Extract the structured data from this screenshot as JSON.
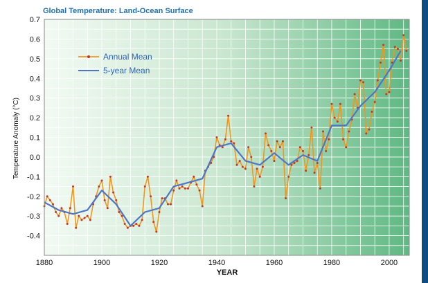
{
  "chart_data": {
    "type": "line",
    "title": "Global Temperature:  Land-Ocean Surface",
    "xlabel": "YEAR",
    "ylabel": "Temperature Anomaly (°C)",
    "xlim": [
      1880,
      2007
    ],
    "ylim": [
      -0.5,
      0.7
    ],
    "x_ticks": [
      "1880",
      "1900",
      "1920",
      "1940",
      "1960",
      "1980",
      "2000"
    ],
    "y_ticks": [
      "0.7",
      "0.6",
      "0.5",
      "0.4",
      "0.3",
      "0.2",
      "0.1",
      "0.0",
      "-0.1",
      "-0.2",
      "-0.3",
      "-0.4"
    ],
    "grid": true,
    "legend_position": "top-left",
    "series": [
      {
        "name": "Annual Mean",
        "color": "#f0961e",
        "marker_color": "#c0392b",
        "x": [
          1880,
          1881,
          1882,
          1883,
          1884,
          1885,
          1886,
          1887,
          1888,
          1889,
          1890,
          1891,
          1892,
          1893,
          1894,
          1895,
          1896,
          1897,
          1898,
          1899,
          1900,
          1901,
          1902,
          1903,
          1904,
          1905,
          1906,
          1907,
          1908,
          1909,
          1910,
          1911,
          1912,
          1913,
          1914,
          1915,
          1916,
          1917,
          1918,
          1919,
          1920,
          1921,
          1922,
          1923,
          1924,
          1925,
          1926,
          1927,
          1928,
          1929,
          1930,
          1931,
          1932,
          1933,
          1934,
          1935,
          1936,
          1937,
          1938,
          1939,
          1940,
          1941,
          1942,
          1943,
          1944,
          1945,
          1946,
          1947,
          1948,
          1949,
          1950,
          1951,
          1952,
          1953,
          1954,
          1955,
          1956,
          1957,
          1958,
          1959,
          1960,
          1961,
          1962,
          1963,
          1964,
          1965,
          1966,
          1967,
          1968,
          1969,
          1970,
          1971,
          1972,
          1973,
          1974,
          1975,
          1976,
          1977,
          1978,
          1979,
          1980,
          1981,
          1982,
          1983,
          1984,
          1985,
          1986,
          1987,
          1988,
          1989,
          1990,
          1991,
          1992,
          1993,
          1994,
          1995,
          1996,
          1997,
          1998,
          1999,
          2000,
          2001,
          2002,
          2003,
          2004,
          2005,
          2006
        ],
        "values": [
          -0.25,
          -0.2,
          -0.22,
          -0.24,
          -0.28,
          -0.3,
          -0.26,
          -0.28,
          -0.34,
          -0.26,
          -0.15,
          -0.36,
          -0.3,
          -0.32,
          -0.31,
          -0.3,
          -0.32,
          -0.24,
          -0.2,
          -0.15,
          -0.12,
          -0.22,
          -0.26,
          -0.1,
          -0.18,
          -0.22,
          -0.28,
          -0.3,
          -0.34,
          -0.36,
          -0.35,
          -0.35,
          -0.34,
          -0.35,
          -0.32,
          -0.15,
          -0.1,
          -0.2,
          -0.33,
          -0.38,
          -0.28,
          -0.21,
          -0.21,
          -0.24,
          -0.24,
          -0.17,
          -0.12,
          -0.16,
          -0.15,
          -0.16,
          -0.16,
          -0.13,
          -0.1,
          -0.14,
          -0.17,
          -0.25,
          -0.07,
          -0.05,
          -0.03,
          0.0,
          0.1,
          0.06,
          0.05,
          0.09,
          0.21,
          0.08,
          0.07,
          -0.04,
          -0.02,
          -0.05,
          -0.06,
          0.05,
          0.0,
          -0.15,
          -0.06,
          -0.1,
          -0.05,
          0.12,
          0.06,
          0.03,
          -0.02,
          0.08,
          0.05,
          0.08,
          -0.21,
          -0.1,
          -0.04,
          -0.03,
          -0.02,
          0.05,
          0.03,
          -0.07,
          0.01,
          0.15,
          -0.08,
          -0.03,
          -0.16,
          0.13,
          0.03,
          0.09,
          0.27,
          0.2,
          0.18,
          0.27,
          0.09,
          0.05,
          0.13,
          0.19,
          0.32,
          0.25,
          0.39,
          0.38,
          0.12,
          0.14,
          0.23,
          0.28,
          0.39,
          0.48,
          0.57,
          0.32,
          0.33,
          0.48,
          0.56,
          0.55,
          0.49,
          0.62,
          0.54
        ]
      },
      {
        "name": "5-year Mean",
        "color": "#4f76c4",
        "x": [
          1880,
          1885,
          1890,
          1895,
          1900,
          1905,
          1910,
          1915,
          1920,
          1925,
          1930,
          1935,
          1940,
          1945,
          1950,
          1955,
          1960,
          1965,
          1970,
          1975,
          1980,
          1985,
          1990,
          1995,
          2000,
          2004
        ],
        "values": [
          -0.23,
          -0.27,
          -0.29,
          -0.27,
          -0.17,
          -0.24,
          -0.35,
          -0.28,
          -0.26,
          -0.15,
          -0.13,
          -0.11,
          0.05,
          0.07,
          -0.02,
          -0.04,
          0.02,
          -0.04,
          0.01,
          -0.02,
          0.16,
          0.16,
          0.26,
          0.33,
          0.44,
          0.54
        ]
      }
    ]
  }
}
